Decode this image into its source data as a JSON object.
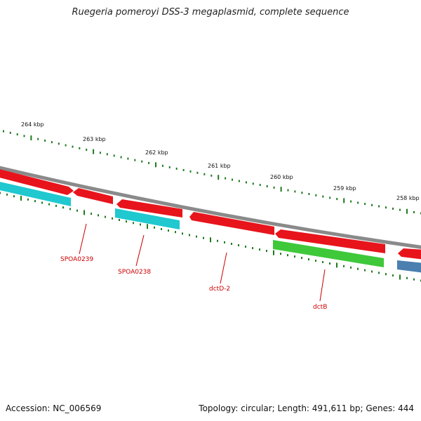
{
  "title": "Ruegeria pomeroyi DSS-3 megaplasmid, complete sequence",
  "footer": {
    "accession": "Accession: NC_006569",
    "summary": "Topology: circular; Length: 491,611 bp; Genes: 444"
  },
  "ticks": [
    "264 kbp",
    "263 kbp",
    "262 kbp",
    "261 kbp",
    "260 kbp",
    "259 kbp",
    "258 kbp"
  ],
  "gene_labels": [
    "SPOA0239",
    "SPOA0238",
    "dctD-2",
    "dctB"
  ],
  "colors": {
    "backbone": "#8a8a8a",
    "forward_gene": "#e8141c",
    "reverse_gene_cyan": "#20c8d0",
    "reverse_gene_green": "#3ec83a",
    "reverse_gene_blue": "#4a7fb0",
    "tick": "#1f7a1f",
    "label": "#cc0000"
  }
}
